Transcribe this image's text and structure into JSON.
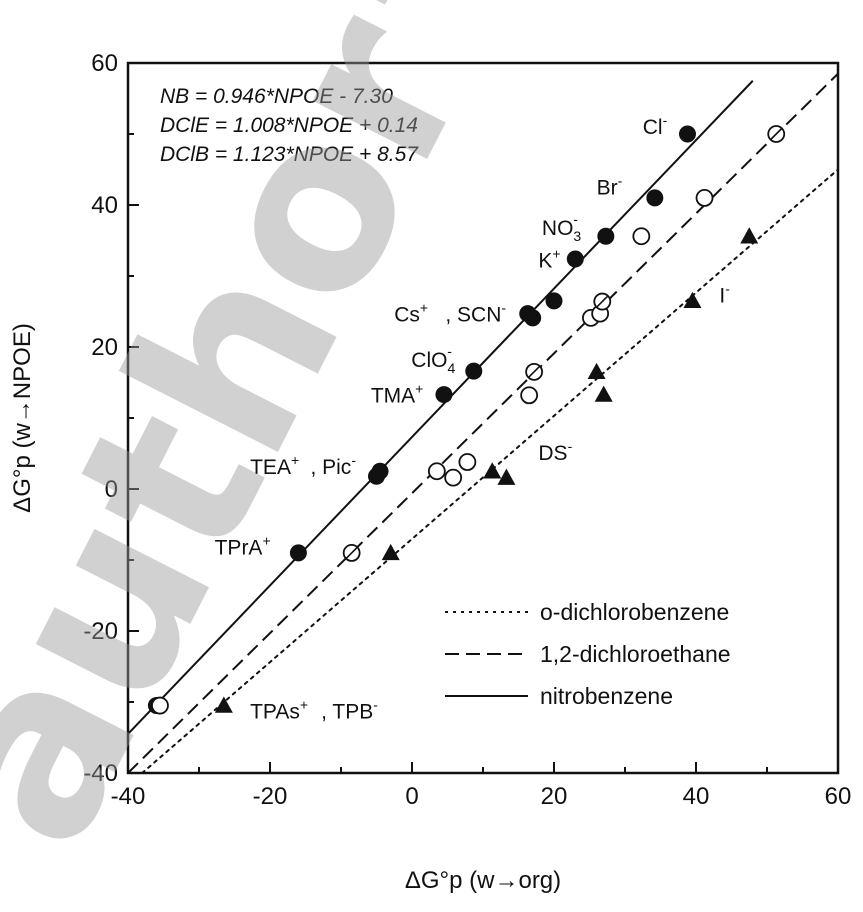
{
  "watermark": "author's",
  "chart_data": {
    "type": "scatter",
    "xlabel": "ΔG°p (w→org)",
    "ylabel": "ΔG°p (w→NPOE)",
    "xlim": [
      -40,
      60
    ],
    "ylim": [
      -40,
      60
    ],
    "xticks": [
      -40,
      -20,
      0,
      20,
      40,
      60
    ],
    "yticks": [
      -40,
      -20,
      0,
      20,
      40,
      60
    ],
    "equations": [
      "NB = 0.946*NPOE - 7.30",
      "DClE = 1.008*NPOE + 0.14",
      "DClB =  1.123*NPOE + 8.57"
    ],
    "legend_position": "bottom-right",
    "series": [
      {
        "name": "nitrobenzene",
        "marker": "filled-circle",
        "line_style": "solid",
        "fit": {
          "x": [
            -40,
            48
          ],
          "y": [
            -34.5,
            57.5
          ]
        },
        "points": [
          {
            "x": -36,
            "y": -30.5
          },
          {
            "x": -16,
            "y": -9
          },
          {
            "x": -5,
            "y": 1.8
          },
          {
            "x": -4.5,
            "y": 2.5
          },
          {
            "x": 4.5,
            "y": 13.3
          },
          {
            "x": 8.7,
            "y": 16.6
          },
          {
            "x": 16.3,
            "y": 24.7
          },
          {
            "x": 17,
            "y": 24.1
          },
          {
            "x": 20,
            "y": 26.5
          },
          {
            "x": 23,
            "y": 32.4
          },
          {
            "x": 27.3,
            "y": 35.6
          },
          {
            "x": 34.2,
            "y": 41
          },
          {
            "x": 38.8,
            "y": 50
          }
        ]
      },
      {
        "name": "1,2-dichloroethane",
        "marker": "open-circle",
        "line_style": "dashed",
        "fit": {
          "x": [
            -40,
            60
          ],
          "y": [
            -40,
            58.5
          ]
        },
        "points": [
          {
            "x": -35.5,
            "y": -30.5
          },
          {
            "x": -8.5,
            "y": -9
          },
          {
            "x": 3.5,
            "y": 2.5
          },
          {
            "x": 5.8,
            "y": 1.6
          },
          {
            "x": 7.8,
            "y": 3.8
          },
          {
            "x": 16.5,
            "y": 13.2
          },
          {
            "x": 17.2,
            "y": 16.5
          },
          {
            "x": 25.2,
            "y": 24.1
          },
          {
            "x": 26.5,
            "y": 24.7
          },
          {
            "x": 26.8,
            "y": 26.4
          },
          {
            "x": 32.3,
            "y": 35.6
          },
          {
            "x": 41.2,
            "y": 41
          },
          {
            "x": 51.3,
            "y": 50
          }
        ]
      },
      {
        "name": "o-dichlorobenzene",
        "marker": "filled-triangle",
        "line_style": "dotted",
        "fit": {
          "x": [
            -38,
            60
          ],
          "y": [
            -40,
            45
          ]
        },
        "points": [
          {
            "x": -26.5,
            "y": -30.5
          },
          {
            "x": -3,
            "y": -9
          },
          {
            "x": 11.3,
            "y": 2.5
          },
          {
            "x": 13.3,
            "y": 1.6
          },
          {
            "x": 26,
            "y": 16.5
          },
          {
            "x": 27,
            "y": 13.3
          },
          {
            "x": 39.5,
            "y": 26.5
          },
          {
            "x": 47.5,
            "y": 35.6
          }
        ]
      }
    ],
    "slashed_points": [
      {
        "x": -8.5,
        "y": -9
      },
      {
        "x": 17.2,
        "y": 16.5
      },
      {
        "x": 26.8,
        "y": 26.4
      },
      {
        "x": 51.3,
        "y": 50
      }
    ],
    "ion_labels": [
      {
        "main": "Cl",
        "sup": "-",
        "sub": "",
        "sup2": "",
        "x": 32.5,
        "y": 50
      },
      {
        "main": "Br",
        "sup": "-",
        "sub": "",
        "sup2": "",
        "x": 26,
        "y": 41.5
      },
      {
        "main": "NO",
        "sup": "",
        "sub": "3",
        "sup2": "-",
        "x": 18.3,
        "y": 35.8
      },
      {
        "main": "K",
        "sup": "+",
        "sub": "",
        "sup2": "",
        "x": 17.8,
        "y": 31.2
      },
      {
        "main": "Cs",
        "sup": "+",
        "sub": "",
        "sup2": "",
        "x": -2.5,
        "y": 23.6
      },
      {
        "main": ", SCN",
        "sup": "-",
        "sub": "",
        "sup2": "",
        "x": 4.7,
        "y": 23.6
      },
      {
        "main": "ClO",
        "sup": "",
        "sub": "4",
        "sup2": "-",
        "x": -0.1,
        "y": 17.2
      },
      {
        "main": "TMA",
        "sup": "+",
        "sub": "",
        "sup2": "",
        "x": -5.8,
        "y": 12.2
      },
      {
        "main": "TEA",
        "sup": "+",
        "sub": "",
        "sup2": "",
        "x": -22.8,
        "y": 2.1
      },
      {
        "main": ", Pic",
        "sup": "-",
        "sub": "",
        "sup2": "",
        "x": -14.3,
        "y": 2.1
      },
      {
        "main": "TPrA",
        "sup": "+",
        "sub": "",
        "sup2": "",
        "x": -27.8,
        "y": -9.2
      },
      {
        "main": "DS",
        "sup": "-",
        "sub": "",
        "sup2": "",
        "x": 17.8,
        "y": 4.1
      },
      {
        "main": "I",
        "sup": "-",
        "sub": "",
        "sup2": "",
        "x": 43.3,
        "y": 26.3
      },
      {
        "main": "TPAs",
        "sup": "+",
        "sub": "",
        "sup2": "",
        "x": -22.8,
        "y": -32.3
      },
      {
        "main": ", TPB",
        "sup": "-",
        "sub": "",
        "sup2": "",
        "x": -12.8,
        "y": -32.3
      }
    ]
  }
}
